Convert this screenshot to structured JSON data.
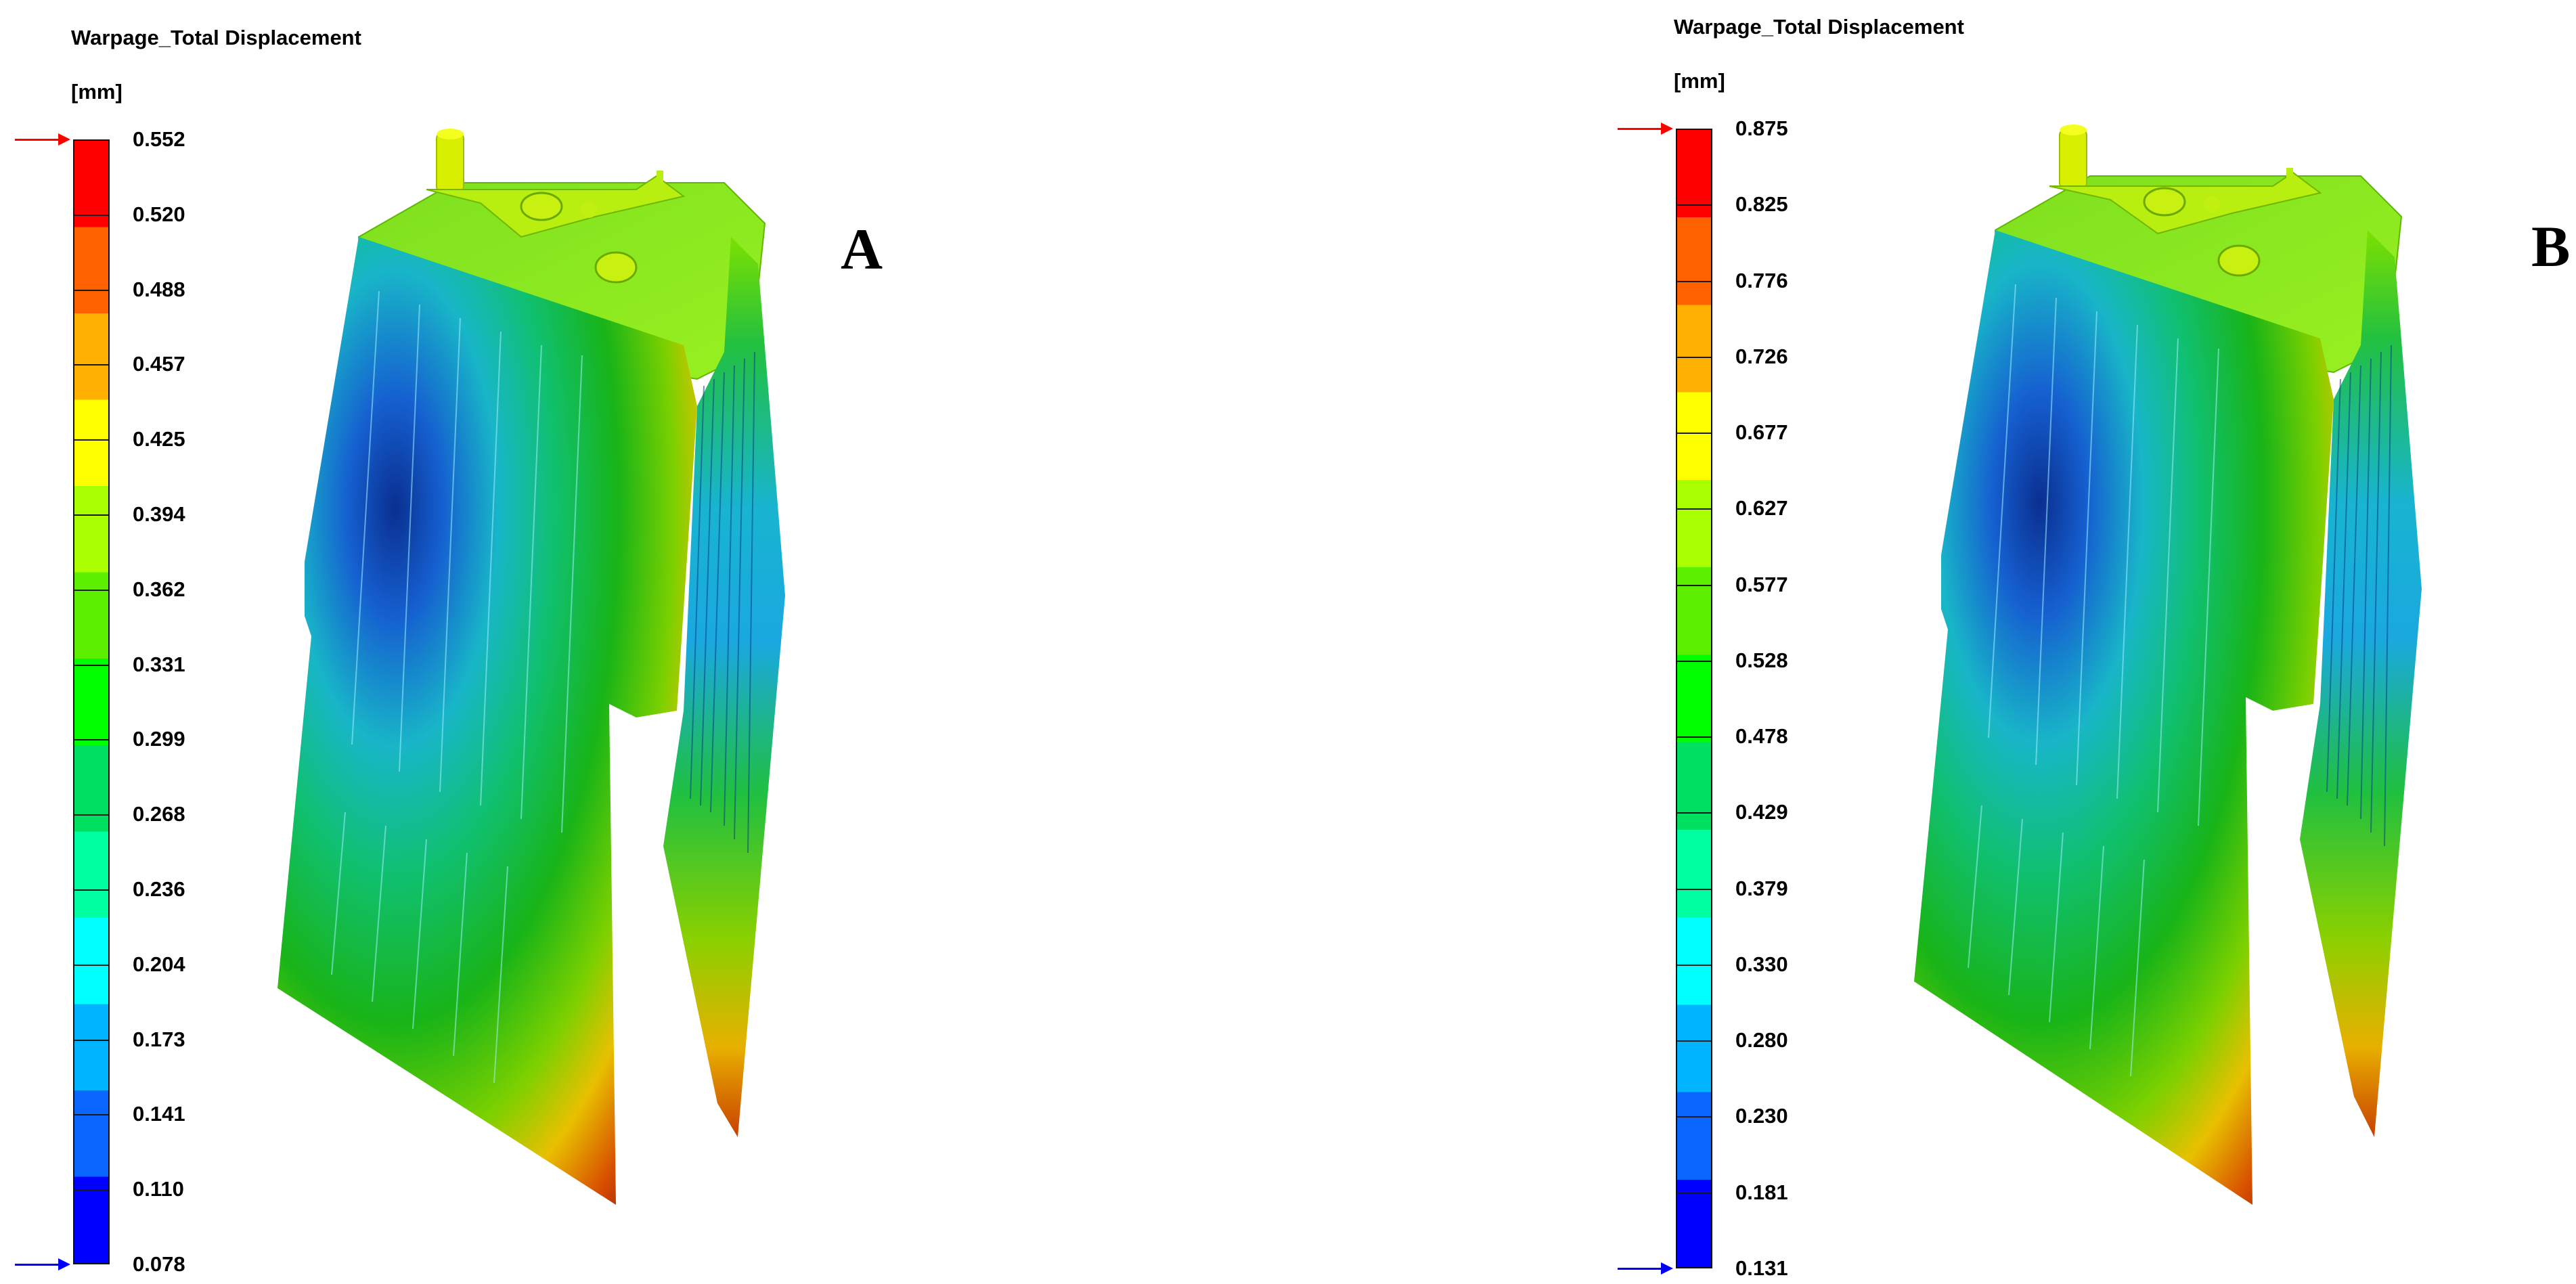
{
  "colors": {
    "max_arrow": "#ff0000",
    "min_arrow": "#0000ff",
    "scale_stops": [
      "#0000ff",
      "#0a66ff",
      "#00b4ff",
      "#00ffff",
      "#00ffa0",
      "#00e060",
      "#00ff00",
      "#5cf000",
      "#aaff00",
      "#ffff00",
      "#ffb000",
      "#ff6000",
      "#ff0000"
    ]
  },
  "panels": [
    {
      "letter": "A",
      "title": "Warpage_Total Displacement",
      "unit": "[mm]",
      "scale": {
        "max": 0.552,
        "min": 0.078,
        "ticks": [
          "0.552",
          "0.520",
          "0.488",
          "0.457",
          "0.425",
          "0.394",
          "0.362",
          "0.331",
          "0.299",
          "0.268",
          "0.236",
          "0.204",
          "0.173",
          "0.141",
          "0.110",
          "0.078"
        ]
      }
    },
    {
      "letter": "B",
      "title": "Warpage_Total Displacement",
      "unit": "[mm]",
      "scale": {
        "max": 0.875,
        "min": 0.131,
        "ticks": [
          "0.875",
          "0.825",
          "0.776",
          "0.726",
          "0.677",
          "0.627",
          "0.577",
          "0.528",
          "0.478",
          "0.429",
          "0.379",
          "0.330",
          "0.280",
          "0.230",
          "0.181",
          "0.131"
        ]
      }
    }
  ]
}
